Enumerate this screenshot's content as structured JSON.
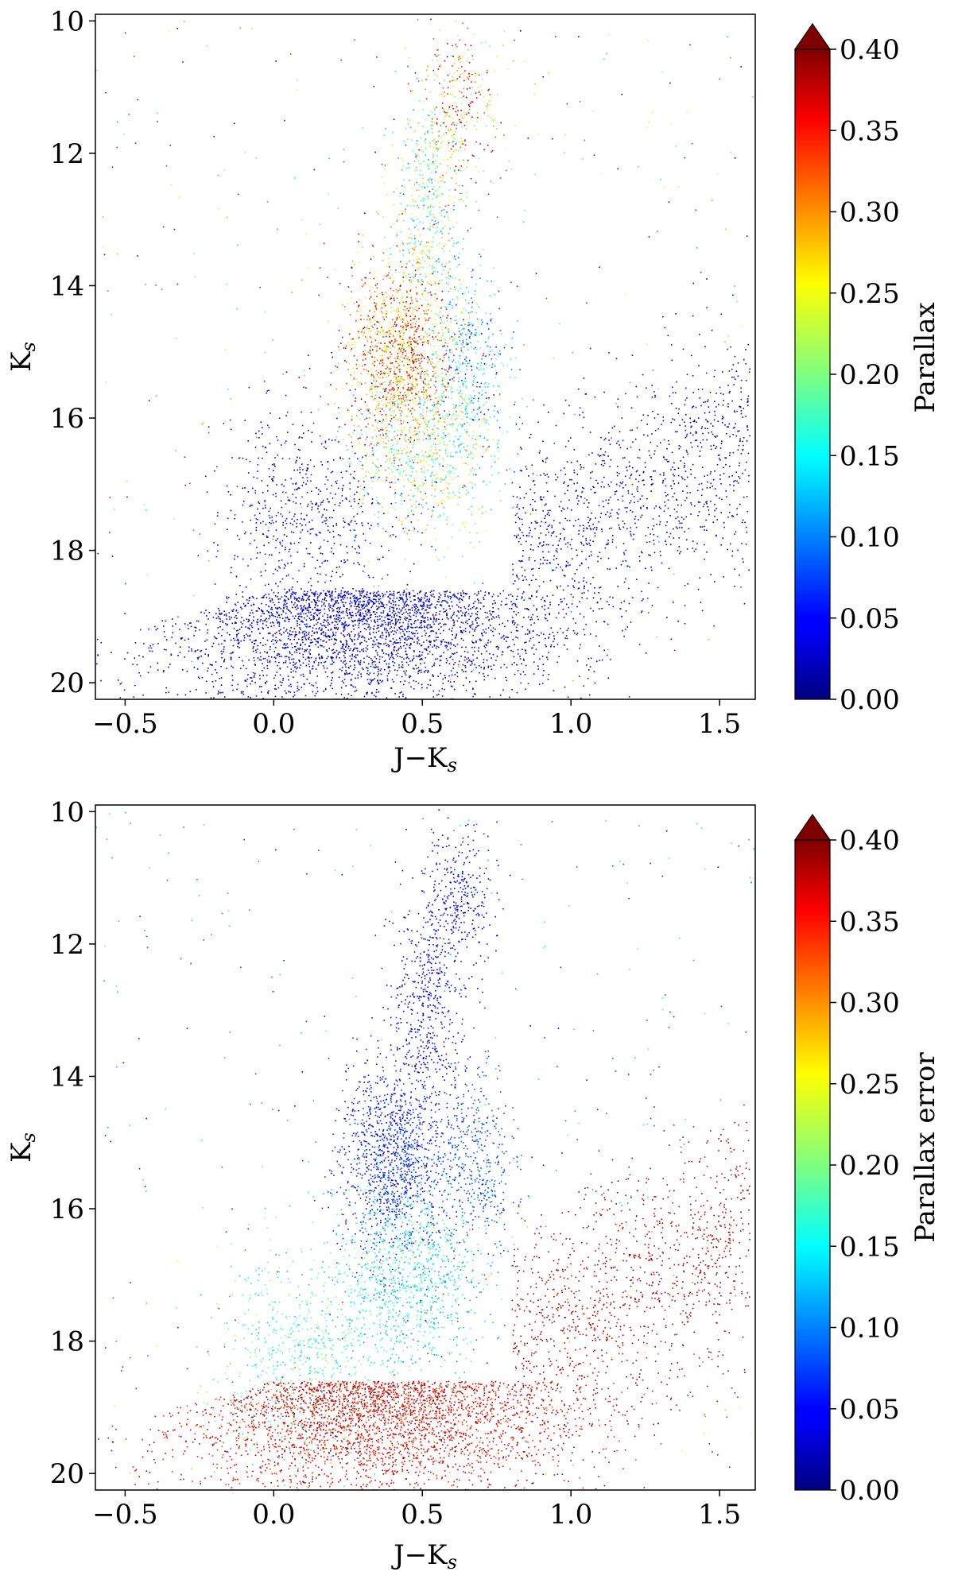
{
  "chart_data": [
    {
      "type": "scatter",
      "title": "",
      "xlabel": "J−K",
      "xlabel_sub": "s",
      "ylabel": "K",
      "ylabel_sub": "s",
      "xlim": [
        -0.6,
        1.62
      ],
      "ylim": [
        20.25,
        9.9
      ],
      "y_inverted": true,
      "xticks": [
        -0.5,
        0.0,
        0.5,
        1.0,
        1.5
      ],
      "xtick_labels": [
        "−0.5",
        "0.0",
        "0.5",
        "1.0",
        "1.5"
      ],
      "yticks": [
        10,
        12,
        14,
        16,
        18,
        20
      ],
      "ytick_labels": [
        "10",
        "12",
        "14",
        "16",
        "18",
        "20"
      ],
      "grid": false,
      "color_variable": "Parallax",
      "colorbar": {
        "label": "Parallax",
        "colormap": "jet",
        "range": [
          0.0,
          0.4
        ],
        "extend": "max",
        "ticks": [
          0.0,
          0.05,
          0.1,
          0.15,
          0.2,
          0.25,
          0.3,
          0.35,
          0.4
        ],
        "tick_labels": [
          "0.00",
          "0.05",
          "0.10",
          "0.15",
          "0.20",
          "0.25",
          "0.30",
          "0.35",
          "0.40"
        ]
      },
      "point_groups": [
        {
          "x_center": 0.62,
          "y_center": 11.3,
          "count": 700,
          "color_value_range": [
            0.18,
            0.4
          ]
        },
        {
          "x_center": 0.52,
          "y_center": 12.9,
          "count": 1100,
          "color_value_range": [
            0.1,
            0.3
          ]
        },
        {
          "x_center": 0.42,
          "y_center": 15.0,
          "count": 2600,
          "color_value_range": [
            0.22,
            0.4
          ]
        },
        {
          "x_center": 0.66,
          "y_center": 15.2,
          "count": 900,
          "color_value_range": [
            0.05,
            0.2
          ]
        },
        {
          "x_center": 0.5,
          "y_center": 16.4,
          "count": 1800,
          "color_value_range": [
            0.12,
            0.3
          ]
        },
        {
          "x_center": 0.1,
          "y_center": 17.5,
          "count": 1500,
          "color_value_range": [
            0.0,
            0.07
          ]
        },
        {
          "x_center": 0.3,
          "y_center": 19.3,
          "count": 7000,
          "color_value_range": [
            0.0,
            0.06
          ]
        },
        {
          "x_center": 1.2,
          "y_center": 17.8,
          "count": 2600,
          "color_value_range": [
            0.0,
            0.05
          ]
        }
      ]
    },
    {
      "type": "scatter",
      "title": "",
      "xlabel": "J−K",
      "xlabel_sub": "s",
      "ylabel": "K",
      "ylabel_sub": "s",
      "xlim": [
        -0.6,
        1.62
      ],
      "ylim": [
        20.25,
        9.9
      ],
      "y_inverted": true,
      "xticks": [
        -0.5,
        0.0,
        0.5,
        1.0,
        1.5
      ],
      "xtick_labels": [
        "−0.5",
        "0.0",
        "0.5",
        "1.0",
        "1.5"
      ],
      "yticks": [
        10,
        12,
        14,
        16,
        18,
        20
      ],
      "ytick_labels": [
        "10",
        "12",
        "14",
        "16",
        "18",
        "20"
      ],
      "grid": false,
      "color_variable": "Parallax error",
      "colorbar": {
        "label": "Parallax error",
        "colormap": "jet",
        "range": [
          0.0,
          0.4
        ],
        "extend": "max",
        "ticks": [
          0.0,
          0.05,
          0.1,
          0.15,
          0.2,
          0.25,
          0.3,
          0.35,
          0.4
        ],
        "tick_labels": [
          "0.00",
          "0.05",
          "0.10",
          "0.15",
          "0.20",
          "0.25",
          "0.30",
          "0.35",
          "0.40"
        ]
      },
      "point_groups": [
        {
          "x_center": 0.62,
          "y_center": 11.3,
          "count": 700,
          "color_value_range": [
            0.03,
            0.06
          ]
        },
        {
          "x_center": 0.52,
          "y_center": 12.9,
          "count": 1100,
          "color_value_range": [
            0.03,
            0.06
          ]
        },
        {
          "x_center": 0.4,
          "y_center": 15.2,
          "count": 2600,
          "color_value_range": [
            0.04,
            0.08
          ]
        },
        {
          "x_center": 0.68,
          "y_center": 15.3,
          "count": 900,
          "color_value_range": [
            0.06,
            0.1
          ]
        },
        {
          "x_center": 0.45,
          "y_center": 17.0,
          "count": 2200,
          "color_value_range": [
            0.1,
            0.2
          ]
        },
        {
          "x_center": 0.1,
          "y_center": 18.2,
          "count": 1500,
          "color_value_range": [
            0.12,
            0.22
          ]
        },
        {
          "x_center": 0.35,
          "y_center": 19.5,
          "count": 7000,
          "color_value_range": [
            0.32,
            0.4
          ]
        },
        {
          "x_center": 1.2,
          "y_center": 18.0,
          "count": 2600,
          "color_value_range": [
            0.36,
            0.4
          ]
        }
      ]
    }
  ]
}
